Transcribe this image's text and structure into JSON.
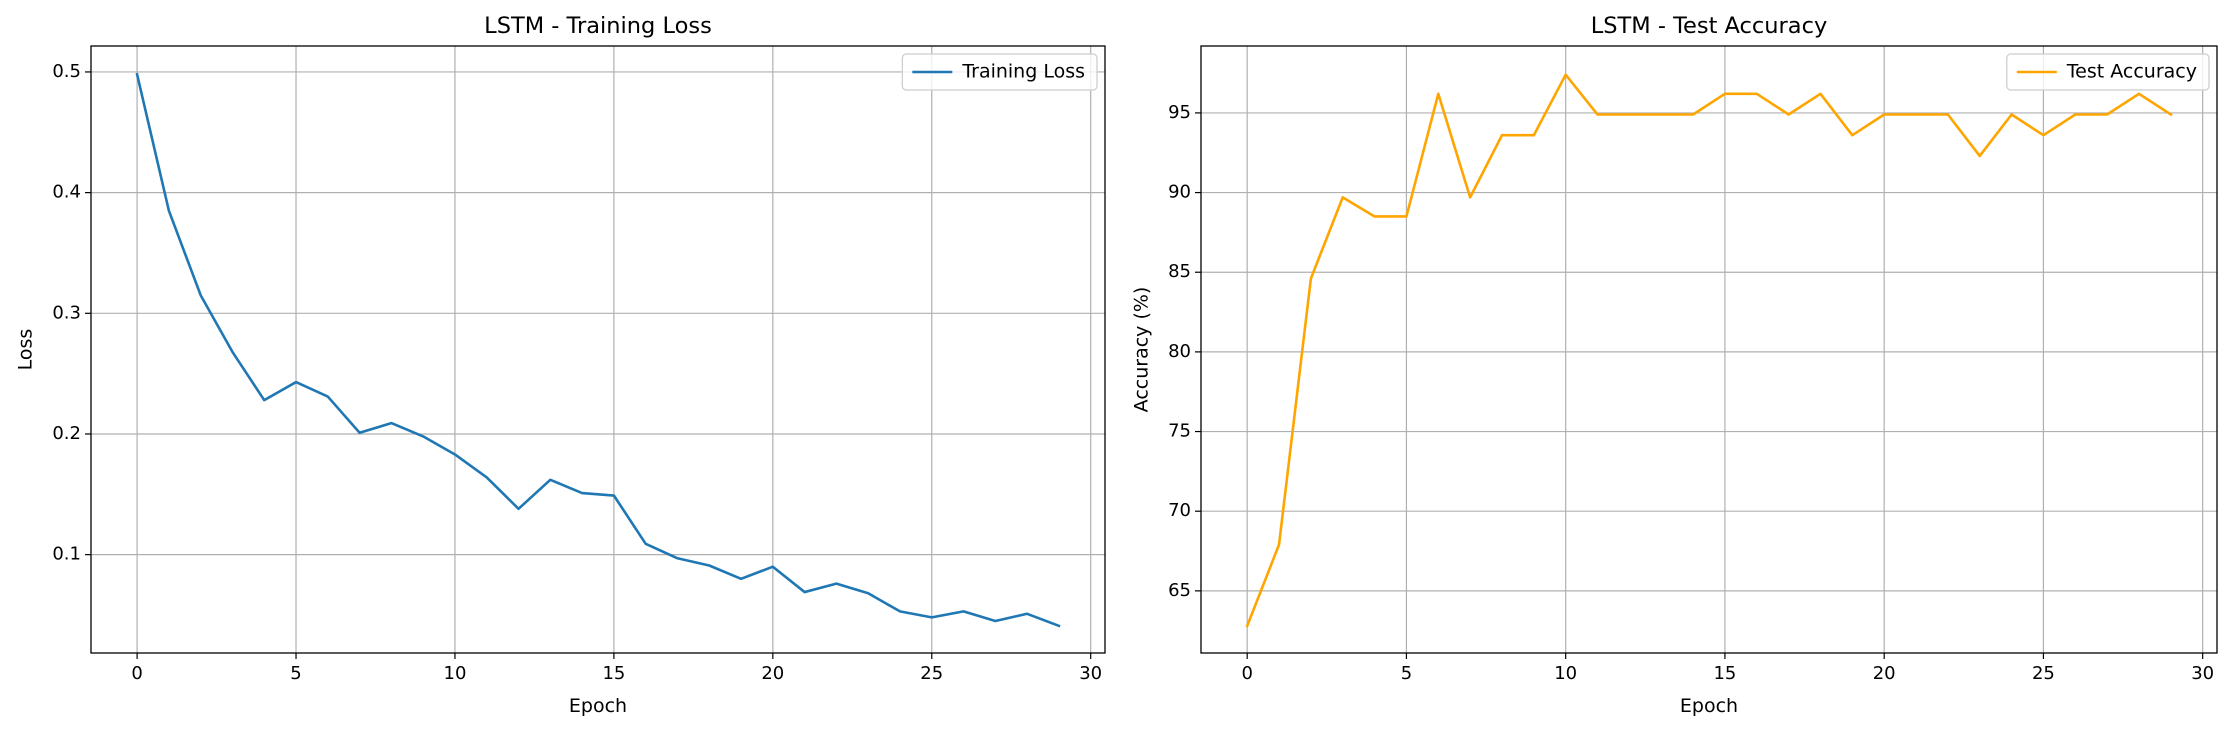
{
  "chart_data": [
    {
      "type": "line",
      "title": "LSTM - Training Loss",
      "xlabel": "Epoch",
      "ylabel": "Loss",
      "xlim": [
        -1.45,
        30.45
      ],
      "ylim": [
        0.0185,
        0.5215
      ],
      "xticks": [
        0,
        5,
        10,
        15,
        20,
        25,
        30
      ],
      "xtick_labels": [
        "0",
        "5",
        "10",
        "15",
        "20",
        "25",
        "30"
      ],
      "yticks": [
        0.1,
        0.2,
        0.3,
        0.4,
        0.5
      ],
      "ytick_labels": [
        "0.1",
        "0.2",
        "0.3",
        "0.4",
        "0.5"
      ],
      "grid": true,
      "legend": "upper right",
      "series": [
        {
          "name": "Training Loss",
          "color": "#1f77b4",
          "x": [
            0,
            1,
            2,
            3,
            4,
            5,
            6,
            7,
            8,
            9,
            10,
            11,
            12,
            13,
            14,
            15,
            16,
            17,
            18,
            19,
            20,
            21,
            22,
            23,
            24,
            25,
            26,
            27,
            28,
            29
          ],
          "values": [
            0.498,
            0.385,
            0.315,
            0.268,
            0.228,
            0.243,
            0.231,
            0.201,
            0.209,
            0.198,
            0.183,
            0.164,
            0.138,
            0.162,
            0.151,
            0.149,
            0.109,
            0.097,
            0.091,
            0.08,
            0.09,
            0.069,
            0.076,
            0.068,
            0.053,
            0.048,
            0.053,
            0.045,
            0.051,
            0.041
          ]
        }
      ]
    },
    {
      "type": "line",
      "title": "LSTM - Test Accuracy",
      "xlabel": "Epoch",
      "ylabel": "Accuracy (%)",
      "xlim": [
        -1.45,
        30.45
      ],
      "ylim": [
        61.1,
        99.2
      ],
      "xticks": [
        0,
        5,
        10,
        15,
        20,
        25,
        30
      ],
      "xtick_labels": [
        "0",
        "5",
        "10",
        "15",
        "20",
        "25",
        "30"
      ],
      "yticks": [
        65,
        70,
        75,
        80,
        85,
        90,
        95
      ],
      "ytick_labels": [
        "65",
        "70",
        "75",
        "80",
        "85",
        "90",
        "95"
      ],
      "grid": true,
      "legend": "upper right",
      "series": [
        {
          "name": "Test Accuracy",
          "color": "#ffa500",
          "x": [
            0,
            1,
            2,
            3,
            4,
            5,
            6,
            7,
            8,
            9,
            10,
            11,
            12,
            13,
            14,
            15,
            16,
            17,
            18,
            19,
            20,
            21,
            22,
            23,
            24,
            25,
            26,
            27,
            28,
            29
          ],
          "values": [
            62.8,
            67.9,
            84.6,
            89.7,
            88.5,
            88.5,
            96.2,
            89.7,
            93.6,
            93.6,
            97.4,
            94.9,
            94.9,
            94.9,
            94.9,
            96.2,
            96.2,
            94.9,
            96.2,
            93.6,
            94.9,
            94.9,
            94.9,
            92.3,
            94.9,
            93.6,
            94.9,
            94.9,
            96.2,
            94.9
          ]
        }
      ]
    }
  ]
}
